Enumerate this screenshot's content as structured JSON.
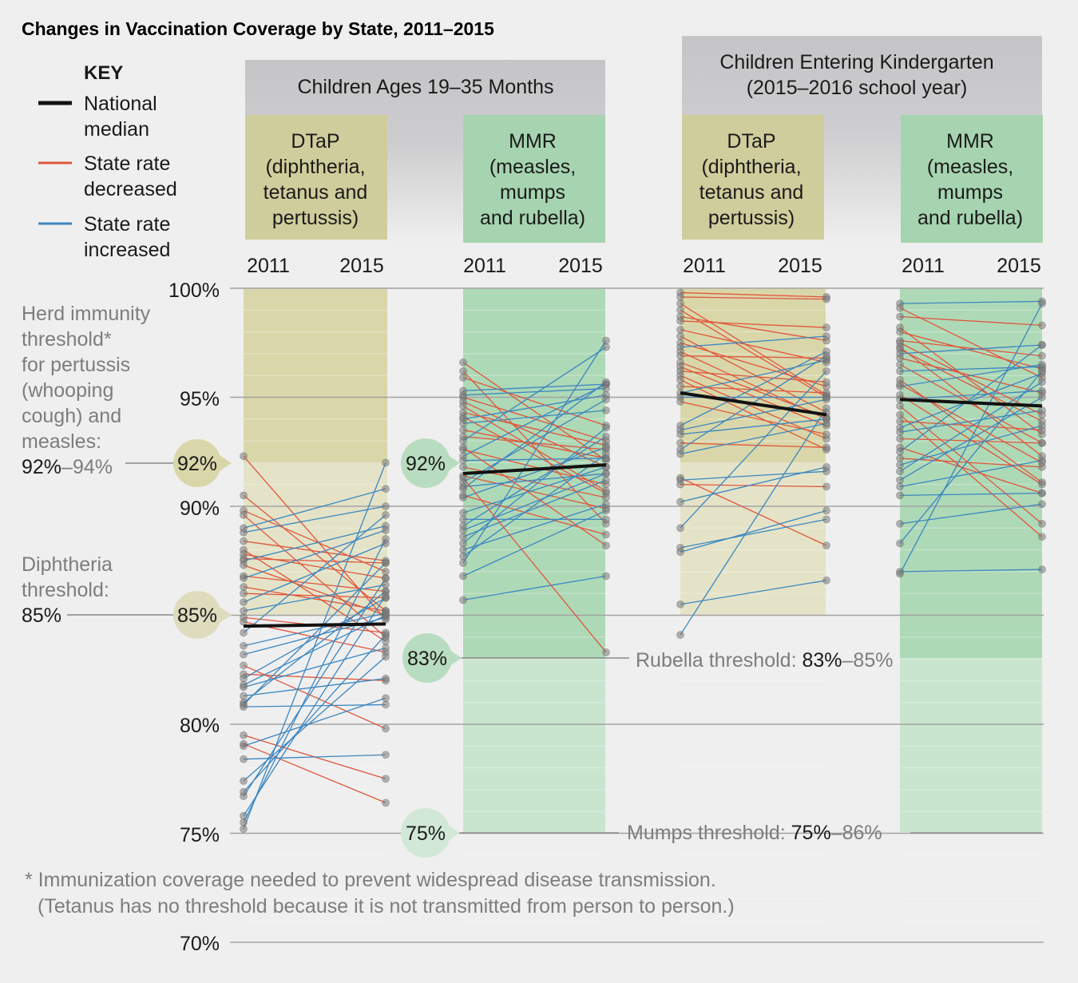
{
  "chart_data": {
    "type": "line",
    "title": "Changes in Vaccination Coverage by State, 2011–2015",
    "ylim": [
      70,
      100
    ],
    "yticks": [
      "100%",
      "95%",
      "90%",
      "80%",
      "75%",
      "70%"
    ],
    "x": [
      "2011",
      "2015"
    ],
    "legend": {
      "heading": "KEY",
      "items": [
        {
          "label_1": "National",
          "label_2": "median",
          "color": "#111111"
        },
        {
          "label_1": "State rate",
          "label_2": "decreased",
          "color": "#e0553a"
        },
        {
          "label_1": "State rate",
          "label_2": "increased",
          "color": "#3b86c0"
        }
      ]
    },
    "groups": [
      {
        "label": "Children Ages 19–35 Months"
      },
      {
        "label_1": "Children Entering Kindergarten",
        "label_2": "(2015–2016 school year)"
      }
    ],
    "vaccine_labels": {
      "dtap": [
        "DTaP",
        "(diphtheria,",
        "tetanus and",
        "pertussis)"
      ],
      "mmr": [
        "MMR",
        "(measles,",
        "mumps",
        "and rubella)"
      ]
    },
    "thresholds": {
      "herd_lines": [
        "Herd immunity",
        "threshold*",
        "for pertussis",
        "(whooping",
        "cough) and",
        "measles:"
      ],
      "herd_range_start": "92%",
      "herd_range_end": "–94%",
      "diphtheria_lines": [
        "Diphtheria",
        "threshold:"
      ],
      "diphtheria_value": "85%",
      "rubella_text": "Rubella threshold: ",
      "rubella_start": "83%",
      "rubella_end": "–85%",
      "mumps_text": "Mumps threshold: ",
      "mumps_start": "75%",
      "mumps_end": "–86%",
      "bubbles": [
        "92%",
        "85%",
        "92%",
        "83%",
        "75%"
      ]
    },
    "footnote": [
      "* Immunization coverage needed to prevent widespread disease transmission.",
      "(Tetanus has no threshold because it is not transmitted from person to person.)"
    ],
    "colors": {
      "decreased": "#e0553a",
      "increased": "#3b86c0",
      "median": "#111111",
      "dtap_fill": "#cfcf9a",
      "mmr_fill": "#9fd3ae",
      "header_gray": "#c9c9cb"
    },
    "panels": [
      {
        "name": "DTaP, Children Ages 19–35 Months",
        "median": [
          84.5,
          84.6
        ],
        "states": [
          [
            92.3,
            84.8
          ],
          [
            90.5,
            85.2
          ],
          [
            89.8,
            87.0
          ],
          [
            89.6,
            84.0
          ],
          [
            89.0,
            90.8
          ],
          [
            88.8,
            90.0
          ],
          [
            88.4,
            87.5
          ],
          [
            88.0,
            83.8
          ],
          [
            87.8,
            86.7
          ],
          [
            87.6,
            87.4
          ],
          [
            87.5,
            89.1
          ],
          [
            87.3,
            85.0
          ],
          [
            86.8,
            86.1
          ],
          [
            86.7,
            88.9
          ],
          [
            86.3,
            85.2
          ],
          [
            86.0,
            85.8
          ],
          [
            85.6,
            88.3
          ],
          [
            85.2,
            86.4
          ],
          [
            84.9,
            84.2
          ],
          [
            84.7,
            83.3
          ],
          [
            84.2,
            89.6
          ],
          [
            83.6,
            85.1
          ],
          [
            83.2,
            84.9
          ],
          [
            82.7,
            79.8
          ],
          [
            82.3,
            82.0
          ],
          [
            82.1,
            85.8
          ],
          [
            81.8,
            85.0
          ],
          [
            81.7,
            83.5
          ],
          [
            81.3,
            82.1
          ],
          [
            81.0,
            86.1
          ],
          [
            80.9,
            87.4
          ],
          [
            80.8,
            80.9
          ],
          [
            79.5,
            77.5
          ],
          [
            79.1,
            76.4
          ],
          [
            79.0,
            81.2
          ],
          [
            78.4,
            78.6
          ],
          [
            77.4,
            83.1
          ],
          [
            76.9,
            84.1
          ],
          [
            76.7,
            86.7
          ],
          [
            75.8,
            85.9
          ],
          [
            75.5,
            88.5
          ],
          [
            75.2,
            92.0
          ]
        ]
      },
      {
        "name": "MMR, Children Ages 19–35 Months",
        "median": [
          91.5,
          91.9
        ],
        "states": [
          [
            96.6,
            92.1
          ],
          [
            96.2,
            89.2
          ],
          [
            95.9,
            93.7
          ],
          [
            95.3,
            95.6
          ],
          [
            95.1,
            95.4
          ],
          [
            95.0,
            93.0
          ],
          [
            94.8,
            91.8
          ],
          [
            94.3,
            92.8
          ],
          [
            94.1,
            90.6
          ],
          [
            94.0,
            95.1
          ],
          [
            93.8,
            94.4
          ],
          [
            93.5,
            92.2
          ],
          [
            93.2,
            92.6
          ],
          [
            93.0,
            97.3
          ],
          [
            92.6,
            91.0
          ],
          [
            92.3,
            95.6
          ],
          [
            92.1,
            92.2
          ],
          [
            91.8,
            90.4
          ],
          [
            91.4,
            89.9
          ],
          [
            91.1,
            94.9
          ],
          [
            90.9,
            91.5
          ],
          [
            90.8,
            95.7
          ],
          [
            90.5,
            88.7
          ],
          [
            90.4,
            92.7
          ],
          [
            89.7,
            91.8
          ],
          [
            89.4,
            89.4
          ],
          [
            89.1,
            93.2
          ],
          [
            88.9,
            91.5
          ],
          [
            88.6,
            91.2
          ],
          [
            88.3,
            93.6
          ],
          [
            88.0,
            90.1
          ],
          [
            87.7,
            92.4
          ],
          [
            87.4,
            97.6
          ],
          [
            86.8,
            89.8
          ],
          [
            85.7,
            86.8
          ],
          [
            91.3,
            83.3
          ],
          [
            92.7,
            88.2
          ],
          [
            94.6,
            90.7
          ]
        ]
      },
      {
        "name": "DTaP, Children Entering Kindergarten",
        "median": [
          95.2,
          94.2
        ],
        "states": [
          [
            99.8,
            99.6
          ],
          [
            99.6,
            99.5
          ],
          [
            99.3,
            95.1
          ],
          [
            99.0,
            95.0
          ],
          [
            98.7,
            97.6
          ],
          [
            98.5,
            98.2
          ],
          [
            98.1,
            96.6
          ],
          [
            97.8,
            94.3
          ],
          [
            97.5,
            95.5
          ],
          [
            97.3,
            97.8
          ],
          [
            97.1,
            94.0
          ],
          [
            96.9,
            96.8
          ],
          [
            96.6,
            94.1
          ],
          [
            96.4,
            93.7
          ],
          [
            96.2,
            95.7
          ],
          [
            96.0,
            93.1
          ],
          [
            95.8,
            92.6
          ],
          [
            95.5,
            95.2
          ],
          [
            95.2,
            96.7
          ],
          [
            95.0,
            95.0
          ],
          [
            94.8,
            93.3
          ],
          [
            93.7,
            97.1
          ],
          [
            93.5,
            94.9
          ],
          [
            93.3,
            94.0
          ],
          [
            92.9,
            92.7
          ],
          [
            92.6,
            96.9
          ],
          [
            91.3,
            88.2
          ],
          [
            91.2,
            91.6
          ],
          [
            91.0,
            90.9
          ],
          [
            90.2,
            91.8
          ],
          [
            89.0,
            96.2
          ],
          [
            88.1,
            89.4
          ],
          [
            87.9,
            89.8
          ],
          [
            85.5,
            86.6
          ],
          [
            84.1,
            94.5
          ],
          [
            92.4,
            93.8
          ]
        ]
      },
      {
        "name": "MMR, Children Entering Kindergarten",
        "median": [
          94.9,
          94.6
        ],
        "states": [
          [
            99.3,
            99.4
          ],
          [
            99.1,
            95.9
          ],
          [
            98.7,
            98.3
          ],
          [
            98.2,
            93.3
          ],
          [
            98.0,
            96.3
          ],
          [
            97.6,
            96.9
          ],
          [
            97.3,
            92.3
          ],
          [
            97.2,
            93.9
          ],
          [
            97.0,
            97.4
          ],
          [
            96.8,
            95.2
          ],
          [
            96.5,
            92.9
          ],
          [
            96.2,
            96.4
          ],
          [
            95.8,
            91.1
          ],
          [
            95.5,
            96.5
          ],
          [
            95.1,
            91.0
          ],
          [
            94.9,
            95.3
          ],
          [
            94.6,
            89.2
          ],
          [
            94.2,
            88.6
          ],
          [
            93.9,
            93.5
          ],
          [
            93.6,
            96.1
          ],
          [
            93.4,
            94.4
          ],
          [
            93.1,
            92.9
          ],
          [
            92.7,
            90.6
          ],
          [
            92.5,
            97.4
          ],
          [
            92.2,
            91.8
          ],
          [
            91.9,
            93.7
          ],
          [
            91.6,
            95.7
          ],
          [
            91.2,
            95.0
          ],
          [
            90.9,
            92.1
          ],
          [
            90.5,
            90.6
          ],
          [
            89.2,
            90.1
          ],
          [
            88.3,
            96.2
          ],
          [
            87.0,
            87.1
          ],
          [
            86.9,
            99.3
          ],
          [
            97.5,
            94.2
          ],
          [
            95.6,
            92.0
          ]
        ]
      }
    ]
  }
}
